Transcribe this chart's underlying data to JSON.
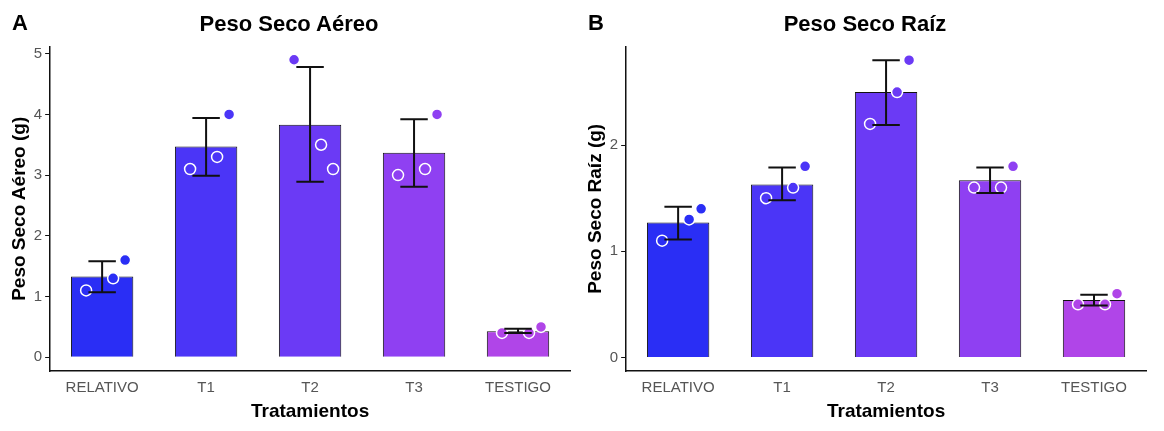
{
  "chart_data": [
    {
      "type": "bar",
      "title": "Peso Seco Aéreo",
      "annotations": [
        "A"
      ],
      "xlabel": "Tratamientos",
      "ylabel": "Peso Seco Aéreo (g)",
      "categories": [
        "RELATIVO",
        "T1",
        "T2",
        "T3",
        "TESTIGO"
      ],
      "series": [
        {
          "colors": [
            "#2a2ef5",
            "#4b35f7",
            "#6b3af5",
            "#8f40f2",
            "#b045e8"
          ],
          "values": [
            1.33,
            3.47,
            3.83,
            3.37,
            0.43
          ],
          "errors": [
            [
              1.07,
              1.58
            ],
            [
              2.99,
              3.94
            ],
            [
              2.89,
              4.78
            ],
            [
              2.81,
              3.92
            ],
            [
              0.4,
              0.47
            ]
          ]
        },
        {
          "type": "scatter",
          "x": [
            "RELATIVO",
            "T1",
            "T2",
            "T3",
            "TESTIGO"
          ],
          "colors": [
            "#2a2ef5",
            "#4b35f7",
            "#6b3af5",
            "#8f40f2",
            "#b045e8"
          ],
          "values": [
            1.1,
            3.1,
            4.9,
            3.0,
            0.4
          ]
        },
        {
          "type": "scatter",
          "x": [
            "RELATIVO",
            "T1",
            "T2",
            "T3",
            "TESTIGO"
          ],
          "colors": [
            "#2a2ef5",
            "#4b35f7",
            "#6b3af5",
            "#8f40f2",
            "#b045e8"
          ],
          "values": [
            1.3,
            3.3,
            3.5,
            3.1,
            0.4
          ]
        },
        {
          "type": "scatter",
          "x": [
            "RELATIVO",
            "T1",
            "T2",
            "T3",
            "TESTIGO"
          ],
          "colors": [
            "#2a2ef5",
            "#4b35f7",
            "#6b3af5",
            "#8f40f2",
            "#b045e8"
          ],
          "values": [
            1.6,
            4.0,
            3.1,
            4.0,
            0.5
          ]
        }
      ],
      "ylim": [
        -0.23,
        5.12
      ],
      "yticks": [
        0,
        1,
        2,
        3,
        4,
        5
      ],
      "grid": false,
      "legend": false
    },
    {
      "type": "bar",
      "title": "Peso Seco Raíz",
      "annotations": [
        "B"
      ],
      "xlabel": "Tratamientos",
      "ylabel": "Peso Seco Raíz (g)",
      "categories": [
        "RELATIVO",
        "T1",
        "T2",
        "T3",
        "TESTIGO"
      ],
      "series": [
        {
          "colors": [
            "#2a2ef5",
            "#4b35f7",
            "#6b3af5",
            "#8f40f2",
            "#b045e8"
          ],
          "values": [
            1.27,
            1.63,
            2.5,
            1.67,
            0.54
          ],
          "errors": [
            [
              1.11,
              1.42
            ],
            [
              1.48,
              1.79
            ],
            [
              2.19,
              2.8
            ],
            [
              1.55,
              1.79
            ],
            [
              0.49,
              0.59
            ]
          ]
        },
        {
          "type": "scatter",
          "x": [
            "RELATIVO",
            "T1",
            "T2",
            "T3",
            "TESTIGO"
          ],
          "colors": [
            "#2a2ef5",
            "#4b35f7",
            "#6b3af5",
            "#8f40f2",
            "#b045e8"
          ],
          "values": [
            1.1,
            1.5,
            2.2,
            1.6,
            0.5
          ]
        },
        {
          "type": "scatter",
          "x": [
            "RELATIVO",
            "T1",
            "T2",
            "T3",
            "TESTIGO"
          ],
          "colors": [
            "#2a2ef5",
            "#4b35f7",
            "#6b3af5",
            "#8f40f2",
            "#b045e8"
          ],
          "values": [
            1.3,
            1.6,
            2.5,
            1.6,
            0.5
          ]
        },
        {
          "type": "scatter",
          "x": [
            "RELATIVO",
            "T1",
            "T2",
            "T3",
            "TESTIGO"
          ],
          "colors": [
            "#2a2ef5",
            "#4b35f7",
            "#6b3af5",
            "#8f40f2",
            "#b045e8"
          ],
          "values": [
            1.4,
            1.8,
            2.8,
            1.8,
            0.6
          ]
        }
      ],
      "ylim": [
        -0.13,
        2.93
      ],
      "yticks": [
        0,
        1,
        2
      ],
      "grid": false,
      "legend": false
    }
  ]
}
